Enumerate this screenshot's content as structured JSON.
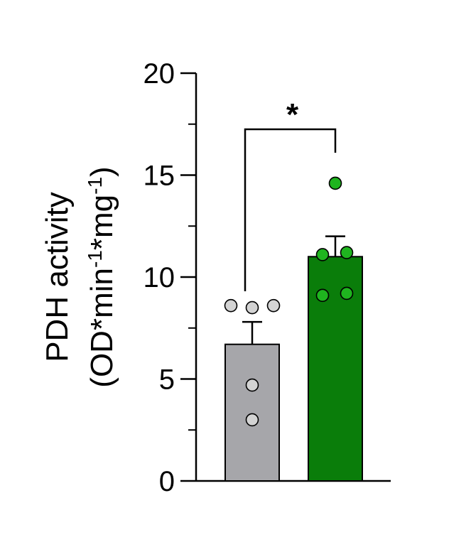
{
  "chart_data": {
    "type": "bar",
    "title": "",
    "ylabel_line1": "PDH activity",
    "ylabel_line2_parts": [
      "(OD*min",
      "-1",
      "*mg",
      "-1",
      ")"
    ],
    "ylim": [
      0,
      20
    ],
    "yticks": [
      "0",
      "5",
      "10",
      "15",
      "20"
    ],
    "ytick_values": [
      0,
      5,
      10,
      15,
      20
    ],
    "minor_tick_values": [
      2.5,
      7.5,
      12.5,
      17.5
    ],
    "categories": [
      "",
      ""
    ],
    "bars": [
      {
        "mean": 6.7,
        "sem": 1.1,
        "fill": "#a6a6aa",
        "point_color": "#d3d3d3",
        "points": [
          8.6,
          8.5,
          8.6,
          4.7,
          3.0
        ]
      },
      {
        "mean": 11.0,
        "sem": 1.0,
        "fill": "#0a7d0a",
        "point_color": "#1fb51f",
        "points": [
          14.6,
          11.1,
          11.2,
          9.1,
          9.2
        ]
      }
    ],
    "significance": {
      "label": "*",
      "between": [
        0,
        1
      ]
    },
    "grid": false,
    "legend": "none"
  }
}
